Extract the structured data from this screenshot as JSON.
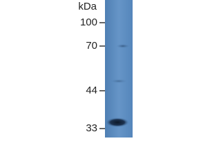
{
  "unit": "kDa",
  "markers": [
    "100",
    "70",
    "44",
    "33"
  ]
}
